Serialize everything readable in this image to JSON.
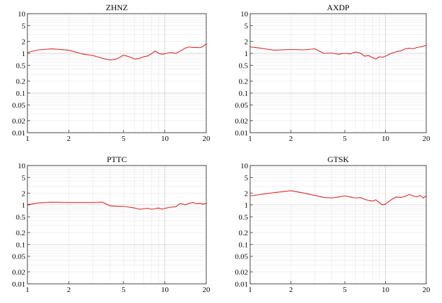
{
  "chart_data": [
    {
      "type": "line",
      "title": "ZHNZ",
      "xscale": "log",
      "yscale": "log",
      "xlim": [
        1,
        20
      ],
      "ylim": [
        0.01,
        10
      ],
      "xticks": [
        1,
        2,
        5,
        10,
        20
      ],
      "xtick_labels": [
        "1",
        "2",
        "5",
        "10",
        "20"
      ],
      "yticks": [
        0.01,
        0.02,
        0.05,
        0.1,
        0.2,
        0.5,
        1,
        2,
        5,
        10
      ],
      "ytick_labels": [
        "0.01",
        "0.02",
        "0.05",
        "0.1",
        "0.2",
        "0.5",
        "1",
        "2",
        "5",
        "10"
      ],
      "grid": true,
      "color": "#d9262a",
      "x": [
        1,
        1.2,
        1.5,
        2.0,
        2.5,
        3.0,
        3.5,
        4.0,
        4.5,
        5.0,
        5.5,
        6.0,
        6.5,
        7.0,
        7.5,
        8.0,
        8.5,
        9.0,
        9.5,
        10,
        11,
        12,
        13,
        14,
        15,
        16,
        17,
        18,
        19,
        20
      ],
      "y": [
        1.05,
        1.22,
        1.3,
        1.2,
        0.97,
        0.88,
        0.75,
        0.68,
        0.73,
        0.9,
        0.82,
        0.72,
        0.74,
        0.82,
        0.86,
        0.98,
        1.15,
        1.0,
        0.95,
        0.98,
        1.05,
        1.0,
        1.15,
        1.35,
        1.45,
        1.4,
        1.42,
        1.38,
        1.5,
        1.75
      ]
    },
    {
      "type": "line",
      "title": "AXDP",
      "xscale": "log",
      "yscale": "log",
      "xlim": [
        1,
        20
      ],
      "ylim": [
        0.01,
        10
      ],
      "xticks": [
        1,
        2,
        5,
        10,
        20
      ],
      "xtick_labels": [
        "1",
        "2",
        "5",
        "10",
        "20"
      ],
      "yticks": [
        0.01,
        0.02,
        0.05,
        0.1,
        0.2,
        0.5,
        1,
        2,
        5,
        10
      ],
      "ytick_labels": [
        "0.01",
        "0.02",
        "0.05",
        "0.1",
        "0.2",
        "0.5",
        "1",
        "2",
        "5",
        "10"
      ],
      "grid": true,
      "color": "#d9262a",
      "x": [
        1,
        1.2,
        1.5,
        2.0,
        2.5,
        3.0,
        3.5,
        4.0,
        4.5,
        5.0,
        5.5,
        6.0,
        6.5,
        7.0,
        7.5,
        8.0,
        8.5,
        9.0,
        9.5,
        10,
        11,
        12,
        13,
        14,
        15,
        16,
        17,
        18,
        19,
        20
      ],
      "y": [
        1.45,
        1.35,
        1.2,
        1.25,
        1.22,
        1.3,
        1.0,
        1.02,
        0.95,
        1.0,
        0.97,
        1.08,
        1.02,
        0.85,
        0.88,
        0.78,
        0.72,
        0.82,
        0.8,
        0.85,
        1.0,
        1.1,
        1.15,
        1.3,
        1.35,
        1.3,
        1.4,
        1.45,
        1.5,
        1.6
      ]
    },
    {
      "type": "line",
      "title": "PTTC",
      "xscale": "log",
      "yscale": "log",
      "xlim": [
        1,
        20
      ],
      "ylim": [
        0.01,
        10
      ],
      "xticks": [
        1,
        2,
        5,
        10,
        20
      ],
      "xtick_labels": [
        "1",
        "2",
        "5",
        "10",
        "20"
      ],
      "yticks": [
        0.01,
        0.02,
        0.05,
        0.1,
        0.2,
        0.5,
        1,
        2,
        5,
        10
      ],
      "ytick_labels": [
        "0.01",
        "0.02",
        "0.05",
        "0.1",
        "0.2",
        "0.5",
        "1",
        "2",
        "5",
        "10"
      ],
      "grid": true,
      "color": "#d9262a",
      "x": [
        1,
        1.2,
        1.5,
        2.0,
        2.5,
        3.0,
        3.5,
        4.0,
        4.5,
        5.0,
        5.5,
        6.0,
        6.5,
        7.0,
        7.5,
        8.0,
        8.5,
        9.0,
        9.5,
        10,
        11,
        12,
        13,
        14,
        15,
        16,
        17,
        18,
        19,
        20
      ],
      "y": [
        1.02,
        1.12,
        1.18,
        1.15,
        1.15,
        1.15,
        1.18,
        0.95,
        0.93,
        0.92,
        0.88,
        0.84,
        0.78,
        0.8,
        0.82,
        0.78,
        0.8,
        0.84,
        0.78,
        0.82,
        0.88,
        0.9,
        1.1,
        1.0,
        1.1,
        1.15,
        1.08,
        1.1,
        1.05,
        1.1
      ]
    },
    {
      "type": "line",
      "title": "GTSK",
      "xscale": "log",
      "yscale": "log",
      "xlim": [
        1,
        20
      ],
      "ylim": [
        0.01,
        10
      ],
      "xticks": [
        1,
        2,
        5,
        10,
        20
      ],
      "xtick_labels": [
        "1",
        "2",
        "5",
        "10",
        "20"
      ],
      "yticks": [
        0.01,
        0.02,
        0.05,
        0.1,
        0.2,
        0.5,
        1,
        2,
        5,
        10
      ],
      "ytick_labels": [
        "0.01",
        "0.02",
        "0.05",
        "0.1",
        "0.2",
        "0.5",
        "1",
        "2",
        "5",
        "10"
      ],
      "grid": true,
      "color": "#d9262a",
      "x": [
        1,
        1.2,
        1.5,
        2.0,
        2.5,
        3.0,
        3.5,
        4.0,
        4.5,
        5.0,
        5.5,
        6.0,
        6.5,
        7.0,
        7.5,
        8.0,
        8.5,
        9.0,
        9.5,
        10,
        11,
        12,
        13,
        14,
        15,
        16,
        17,
        18,
        19,
        20
      ],
      "y": [
        1.7,
        1.85,
        2.05,
        2.3,
        2.0,
        1.75,
        1.55,
        1.5,
        1.6,
        1.7,
        1.6,
        1.5,
        1.55,
        1.4,
        1.3,
        1.25,
        1.35,
        1.15,
        1.0,
        1.05,
        1.35,
        1.6,
        1.55,
        1.65,
        1.85,
        1.7,
        1.6,
        1.75,
        1.5,
        1.7
      ]
    }
  ]
}
